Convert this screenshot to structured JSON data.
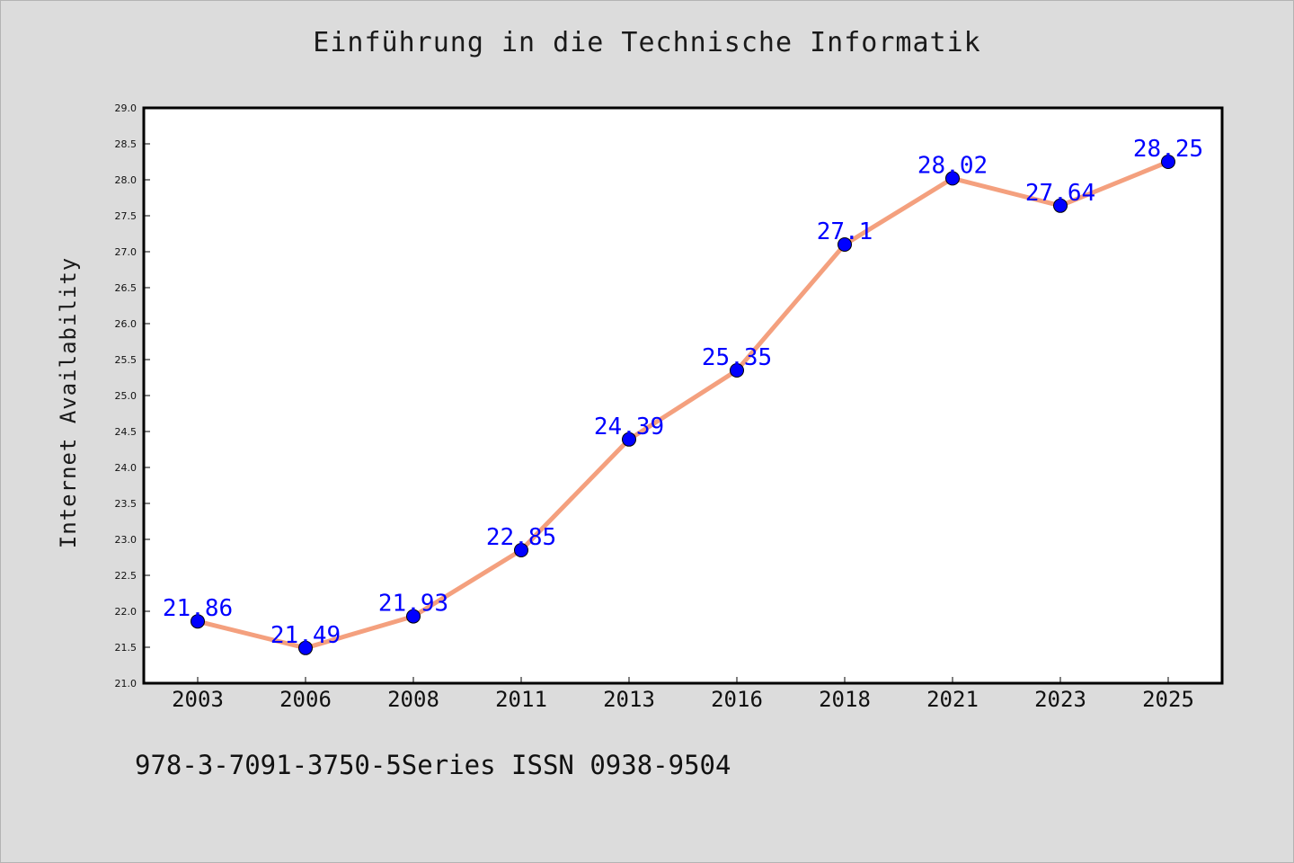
{
  "header": {
    "title": "Einführung in die Technische Informatik"
  },
  "footer": {
    "text": "978-3-7091-3750-5Series ISSN 0938-9504"
  },
  "colors": {
    "background": "#dcdcdc",
    "plot_background": "#ffffff",
    "line": "#f4a07e",
    "marker": "#0000ff",
    "data_label": "#0000ff"
  },
  "chart_data": {
    "type": "line",
    "title": "Einführung in die Technische Informatik",
    "xlabel": "",
    "ylabel": "Internet Availability",
    "categories": [
      "2003",
      "2006",
      "2008",
      "2011",
      "2013",
      "2016",
      "2018",
      "2021",
      "2023",
      "2025"
    ],
    "series": [
      {
        "values": [
          21.86,
          21.49,
          21.93,
          22.85,
          24.39,
          25.35,
          27.1,
          28.02,
          27.64,
          28.25
        ]
      }
    ],
    "data_labels": [
      "21.86",
      "21.49",
      "21.93",
      "22.85",
      "24.39",
      "25.35",
      "27.1",
      "28.02",
      "27.64",
      "28.25"
    ],
    "ylim": [
      21.0,
      29.0
    ],
    "yticks": [
      "21.0",
      "21.5",
      "22.0",
      "22.5",
      "23.0",
      "23.5",
      "24.0",
      "24.5",
      "25.0",
      "25.5",
      "26.0",
      "26.5",
      "27.0",
      "27.5",
      "28.0",
      "28.5",
      "29.0"
    ],
    "grid": false,
    "legend": "none"
  }
}
